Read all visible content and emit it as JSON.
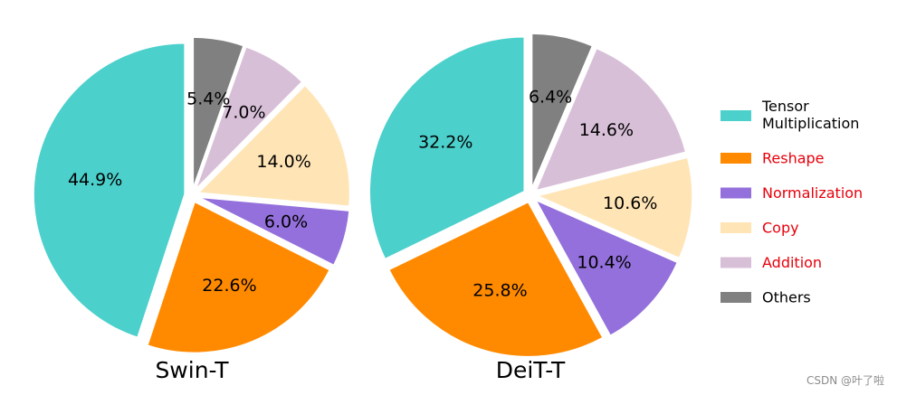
{
  "chart_data": {
    "type": "pie",
    "start_angle": "top (12 o'clock), clockwise from smallest category 'Others'",
    "categories": [
      "Tensor Multiplication",
      "Reshape",
      "Normalization",
      "Copy",
      "Addition",
      "Others"
    ],
    "colors": [
      "#4bd0cc",
      "#ff8a00",
      "#9370db",
      "#ffe4b5",
      "#d8bfd8",
      "#808080"
    ],
    "legend": {
      "position": "right",
      "entries": [
        {
          "lines": [
            "Tensor",
            "Multiplication"
          ],
          "color": "#4bd0cc",
          "text_color": "#000000"
        },
        {
          "lines": [
            "Reshape"
          ],
          "color": "#ff8a00",
          "text_color": "#e8000b"
        },
        {
          "lines": [
            "Normalization"
          ],
          "color": "#9370db",
          "text_color": "#e8000b"
        },
        {
          "lines": [
            "Copy"
          ],
          "color": "#ffe4b5",
          "text_color": "#e8000b"
        },
        {
          "lines": [
            "Addition"
          ],
          "color": "#d8bfd8",
          "text_color": "#e8000b"
        },
        {
          "lines": [
            "Others"
          ],
          "color": "#808080",
          "text_color": "#000000"
        }
      ]
    },
    "pies": [
      {
        "title": "Swin-T",
        "values": [
          44.9,
          22.6,
          6.0,
          14.0,
          7.0,
          5.4
        ],
        "labels": [
          "44.9%",
          "22.6%",
          "6.0%",
          "14.0%",
          "7.0%",
          "5.4%"
        ]
      },
      {
        "title": "DeiT-T",
        "values": [
          32.2,
          25.8,
          10.4,
          10.6,
          14.6,
          6.4
        ],
        "labels": [
          "32.2%",
          "25.8%",
          "10.4%",
          "10.6%",
          "14.6%",
          "6.4%"
        ]
      }
    ]
  },
  "watermark": "CSDN @叶了啦"
}
